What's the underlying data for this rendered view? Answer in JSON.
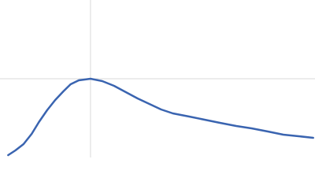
{
  "chart_data": {
    "type": "line",
    "x": [
      0.09,
      0.17,
      0.26,
      0.35,
      0.43,
      0.52,
      0.61,
      0.7,
      0.78,
      0.87,
      1.0,
      1.13,
      1.26,
      1.39,
      1.52,
      1.65,
      1.78,
      1.91,
      2.09,
      2.26,
      2.43,
      2.61,
      2.78,
      2.96,
      3.13,
      3.3,
      3.46
    ],
    "series": [
      {
        "color": "#3a64b0",
        "values": [
          0.03,
          0.09,
          0.17,
          0.3,
          0.45,
          0.6,
          0.73,
          0.84,
          0.93,
          0.98,
          1.0,
          0.97,
          0.91,
          0.83,
          0.75,
          0.68,
          0.61,
          0.56,
          0.52,
          0.48,
          0.44,
          0.4,
          0.37,
          0.33,
          0.29,
          0.27,
          0.25
        ]
      }
    ],
    "xlim": [
      0,
      3.48
    ],
    "ylim": [
      0,
      2
    ],
    "xticks": [
      1
    ],
    "yticks": [
      1
    ],
    "grid": true
  }
}
